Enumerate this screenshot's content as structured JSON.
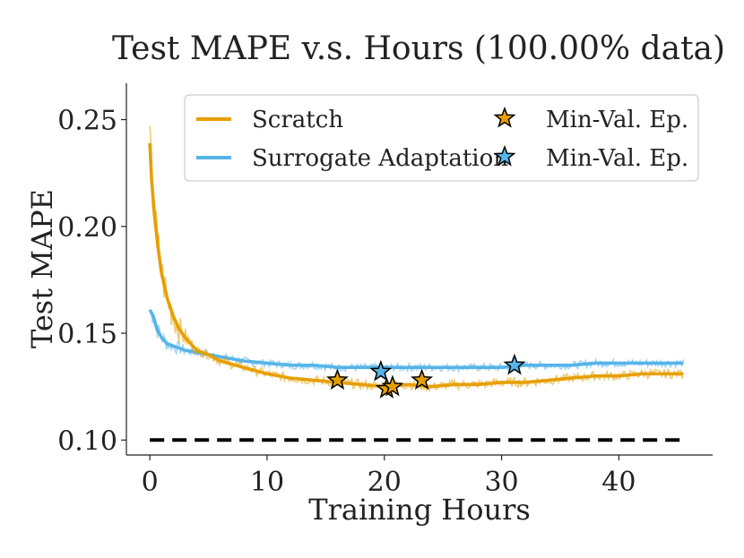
{
  "chart_data": {
    "type": "line",
    "title": "Test MAPE v.s. Hours (100.00% data)",
    "xlabel": "Training Hours",
    "ylabel": "Test MAPE",
    "xlim": [
      -2,
      48
    ],
    "ylim": [
      0.093,
      0.267
    ],
    "xticks": [
      0,
      10,
      20,
      30,
      40
    ],
    "yticks": [
      0.1,
      0.15,
      0.2,
      0.25
    ],
    "ytick_labels": [
      "0.10",
      "0.15",
      "0.20",
      "0.25"
    ],
    "grid": false,
    "legend_position": "top-right",
    "series": [
      {
        "name": "Scratch",
        "color": "#E69F00",
        "x": [
          0,
          0.15,
          0.4,
          0.7,
          1.0,
          1.5,
          2,
          2.5,
          3,
          4,
          5,
          6,
          8,
          10,
          12,
          14,
          16,
          18,
          20,
          22,
          24,
          26,
          28,
          30,
          32,
          34,
          36,
          38,
          40,
          42,
          44,
          45.5
        ],
        "y": [
          0.239,
          0.222,
          0.205,
          0.19,
          0.178,
          0.166,
          0.158,
          0.152,
          0.148,
          0.142,
          0.14,
          0.137,
          0.134,
          0.131,
          0.129,
          0.128,
          0.127,
          0.126,
          0.125,
          0.126,
          0.125,
          0.126,
          0.126,
          0.127,
          0.127,
          0.128,
          0.129,
          0.13,
          0.13,
          0.131,
          0.131,
          0.131
        ],
        "min_val_markers": [
          {
            "x": 16.0,
            "y": 0.128
          },
          {
            "x": 20.2,
            "y": 0.124
          },
          {
            "x": 20.7,
            "y": 0.125
          },
          {
            "x": 23.2,
            "y": 0.128
          }
        ]
      },
      {
        "name": "Surrogate Adaptation",
        "color": "#56B4E9",
        "x": [
          0,
          0.3,
          0.6,
          1.0,
          1.5,
          2,
          3,
          4,
          5,
          6,
          8,
          10,
          12,
          14,
          16,
          18,
          20,
          22,
          24,
          26,
          28,
          30,
          32,
          34,
          36,
          38,
          40,
          42,
          44,
          45.5
        ],
        "y": [
          0.161,
          0.158,
          0.152,
          0.148,
          0.145,
          0.144,
          0.142,
          0.141,
          0.14,
          0.139,
          0.137,
          0.136,
          0.135,
          0.135,
          0.134,
          0.134,
          0.134,
          0.134,
          0.134,
          0.134,
          0.134,
          0.134,
          0.135,
          0.135,
          0.135,
          0.136,
          0.136,
          0.136,
          0.136,
          0.136
        ],
        "min_val_markers": [
          {
            "x": 19.7,
            "y": 0.132
          },
          {
            "x": 31.1,
            "y": 0.135
          }
        ]
      }
    ],
    "reference_line": {
      "name": "baseline",
      "y": 0.1,
      "x_range": [
        0,
        45.5
      ],
      "style": "dashed",
      "color": "#000000"
    },
    "legend": {
      "entries": [
        "Scratch",
        "Surrogate Adaptation",
        "Min-Val. Ep.",
        "Min-Val. Ep."
      ]
    }
  }
}
